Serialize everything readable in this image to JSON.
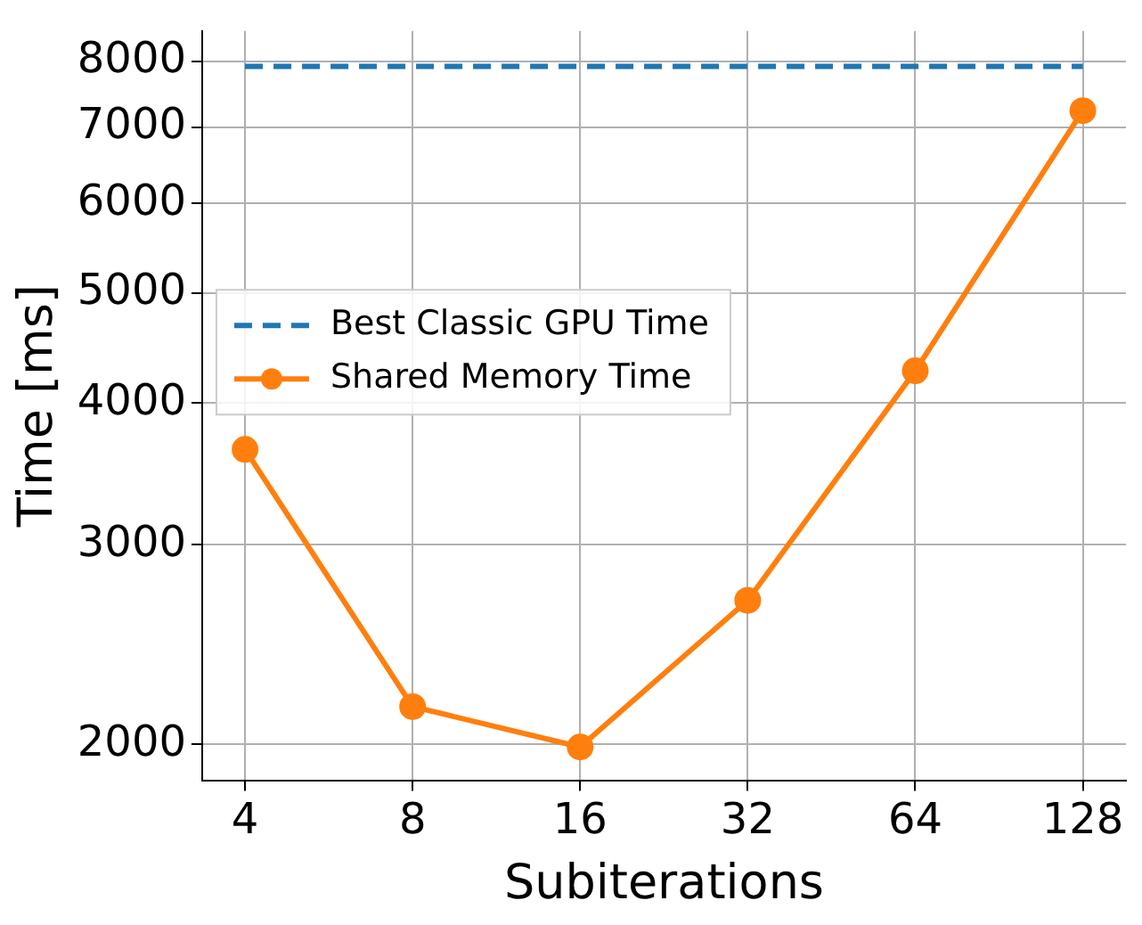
{
  "chart_data": {
    "type": "line",
    "xlabel": "Subiterations",
    "ylabel": "Time [ms]",
    "log": "xy",
    "grid": true,
    "legend": "center left",
    "xlim": [
      3.35,
      153
    ],
    "xticks": [
      4,
      8,
      16,
      32,
      64,
      128
    ],
    "ylim": [
      1860,
      8510
    ],
    "yticks": [
      2000,
      3000,
      4000,
      5000,
      6000,
      7000,
      8000
    ],
    "series": [
      {
        "name": "Best Classic GPU Time",
        "color": "#1f77b4",
        "x": [
          4,
          128
        ],
        "values": [
          7920,
          7920
        ],
        "line_style": "dashed",
        "marker": "none"
      },
      {
        "name": "Shared Memory Time",
        "color": "#ff7f0e",
        "x": [
          4,
          8,
          16,
          32,
          64,
          128
        ],
        "values": [
          3640,
          2160,
          1990,
          2680,
          4270,
          7240
        ],
        "line_style": "solid",
        "marker": "circle"
      }
    ]
  }
}
